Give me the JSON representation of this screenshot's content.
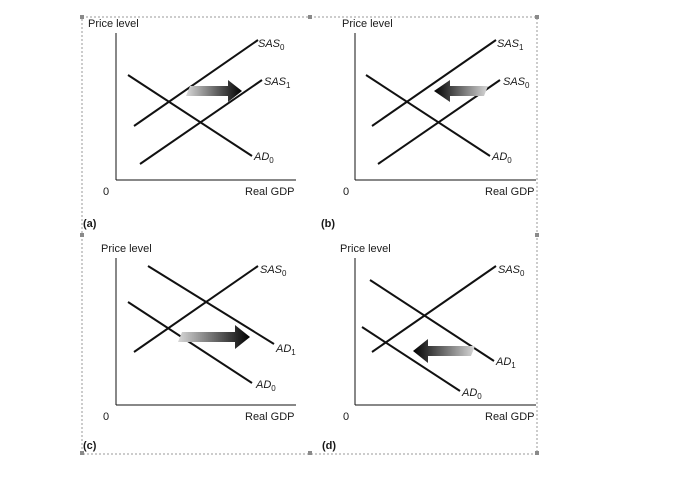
{
  "figure": {
    "panels": [
      {
        "id": "a",
        "letter": "(a)",
        "y_axis_title": "Price level",
        "x_axis_title": "Real GDP",
        "origin_label": "0",
        "curves": [
          {
            "name": "SAS",
            "sub": "0",
            "kind": "supply",
            "shift": "original"
          },
          {
            "name": "SAS",
            "sub": "1",
            "kind": "supply",
            "shift": "shifted-right"
          },
          {
            "name": "AD",
            "sub": "0",
            "kind": "demand",
            "shift": "original"
          }
        ],
        "arrow_direction": "right"
      },
      {
        "id": "b",
        "letter": "(b)",
        "y_axis_title": "Price level",
        "x_axis_title": "Real GDP",
        "origin_label": "0",
        "curves": [
          {
            "name": "SAS",
            "sub": "1",
            "kind": "supply",
            "shift": "shifted-left"
          },
          {
            "name": "SAS",
            "sub": "0",
            "kind": "supply",
            "shift": "original"
          },
          {
            "name": "AD",
            "sub": "0",
            "kind": "demand",
            "shift": "original"
          }
        ],
        "arrow_direction": "left"
      },
      {
        "id": "c",
        "letter": "(c)",
        "y_axis_title": "Price level",
        "x_axis_title": "Real GDP",
        "origin_label": "0",
        "curves": [
          {
            "name": "SAS",
            "sub": "0",
            "kind": "supply",
            "shift": "original"
          },
          {
            "name": "AD",
            "sub": "1",
            "kind": "demand",
            "shift": "shifted-right"
          },
          {
            "name": "AD",
            "sub": "0",
            "kind": "demand",
            "shift": "original"
          }
        ],
        "arrow_direction": "right"
      },
      {
        "id": "d",
        "letter": "(d)",
        "y_axis_title": "Price level",
        "x_axis_title": "Real GDP",
        "origin_label": "0",
        "curves": [
          {
            "name": "SAS",
            "sub": "0",
            "kind": "supply",
            "shift": "original"
          },
          {
            "name": "AD",
            "sub": "1",
            "kind": "demand",
            "shift": "original"
          },
          {
            "name": "AD",
            "sub": "0",
            "kind": "demand",
            "shift": "shifted-left"
          }
        ],
        "arrow_direction": "left"
      }
    ],
    "colors": {
      "ink": "#111111",
      "frame": "#9a9a9a",
      "arrow_dark": "#000000",
      "arrow_light": "#cfcfcf"
    }
  }
}
